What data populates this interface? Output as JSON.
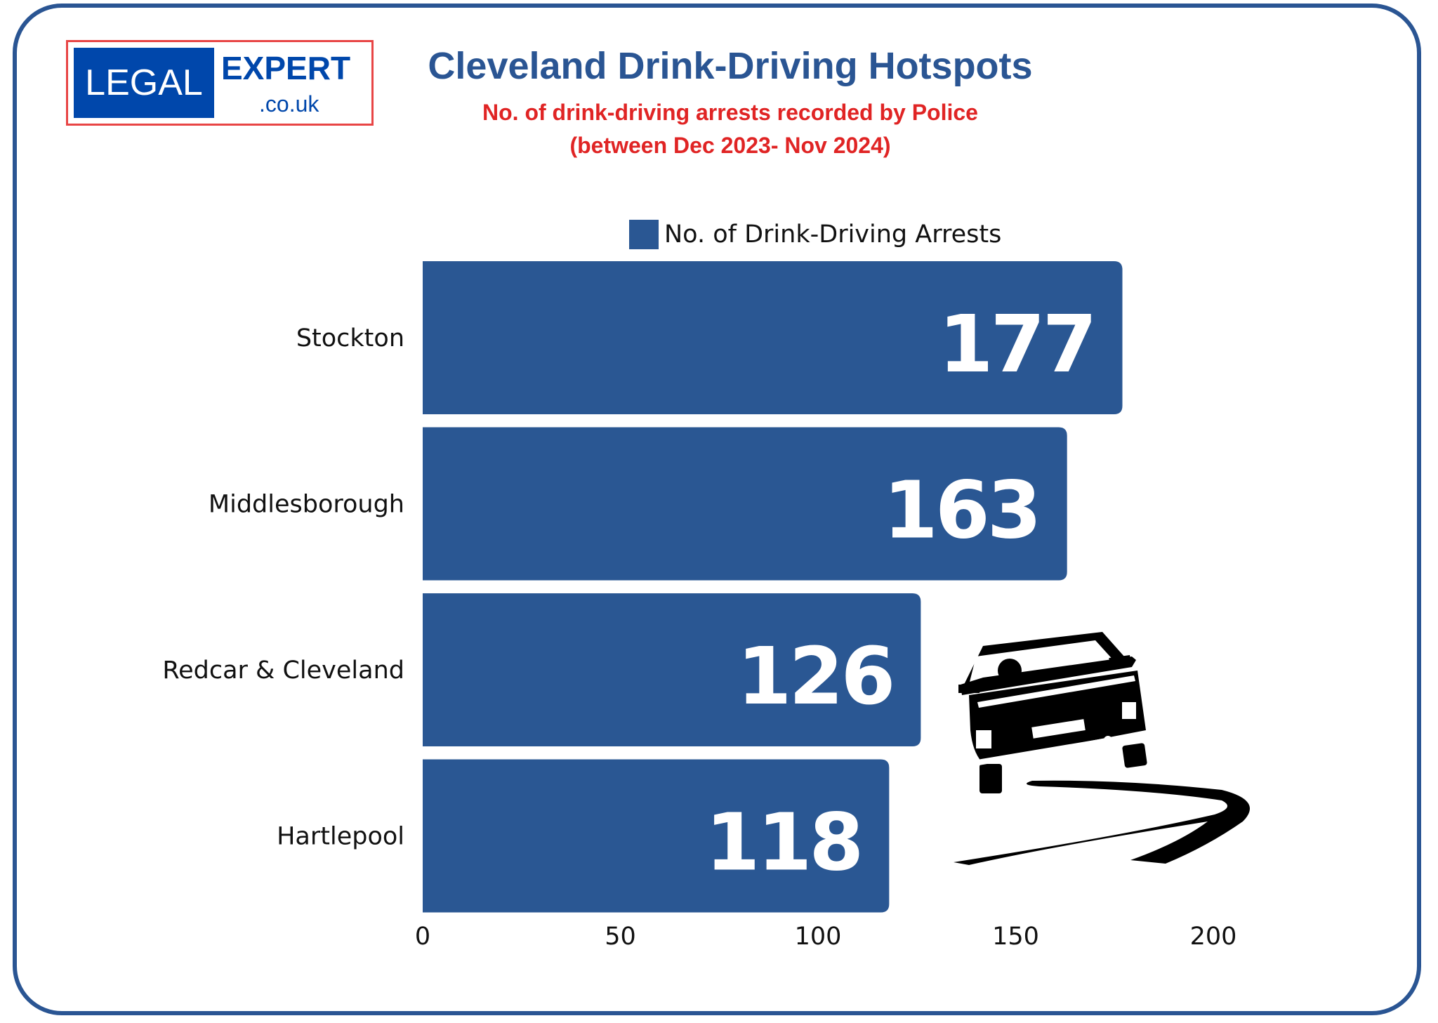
{
  "logo": {
    "text_left": "LEGAL",
    "text_right": "EXPERT",
    "domain": ".co.uk"
  },
  "colors": {
    "bar": "#2a5793",
    "title": "#2a5593",
    "subtitle": "#e02424",
    "frame": "#2a5593"
  },
  "chart_data": {
    "type": "bar",
    "orientation": "horizontal",
    "title": "Cleveland Drink-Driving Hotspots",
    "subtitle": [
      "No. of drink-driving arrests recorded by Police",
      "(between Dec 2023- Nov 2024)"
    ],
    "categories": [
      "Stockton",
      "Middlesborough",
      "Redcar & Cleveland",
      "Hartlepool"
    ],
    "series": [
      {
        "name": "No. of Drink-Driving Arrests",
        "values": [
          177,
          163,
          126,
          118
        ]
      }
    ],
    "data_labels": [
      "177",
      "163",
      "126",
      "118"
    ],
    "xlim": [
      0,
      200
    ],
    "xticks": [
      "0",
      "50",
      "100",
      "150",
      "200"
    ],
    "legend": "top",
    "grid": false,
    "decoration_icon": "skidding-car-icon"
  }
}
